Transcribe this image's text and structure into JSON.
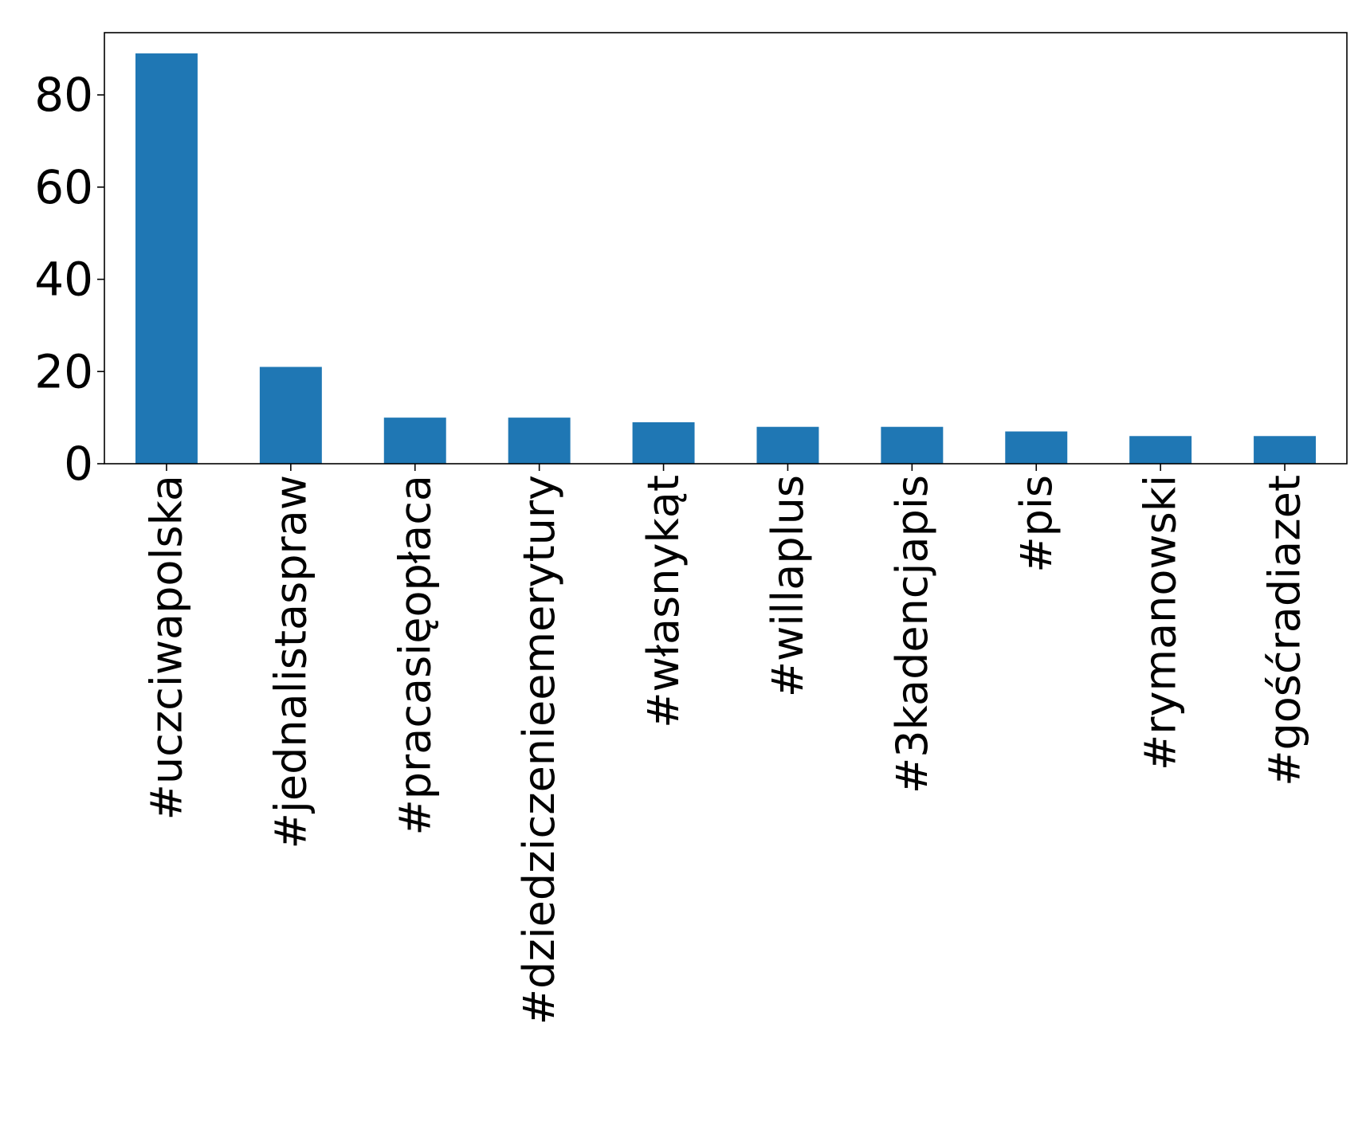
{
  "chart_data": {
    "type": "bar",
    "title": "",
    "xlabel": "",
    "ylabel": "",
    "categories": [
      "#uczciwapolska",
      "#jednalistaspraw",
      "#pracasięopłaca",
      "#dziedziczenieemerytury",
      "#własnykąt",
      "#willaplus",
      "#3kadencjapis",
      "#pis",
      "#rymanowski",
      "#gośćradiazet"
    ],
    "values": [
      89,
      21,
      10,
      10,
      9,
      8,
      8,
      7,
      6,
      6
    ],
    "ylim": [
      0,
      93.5
    ],
    "yticks": [
      0,
      20,
      40,
      60,
      80
    ],
    "grid": false,
    "legend": "none",
    "bar_color": "#1f77b4"
  }
}
